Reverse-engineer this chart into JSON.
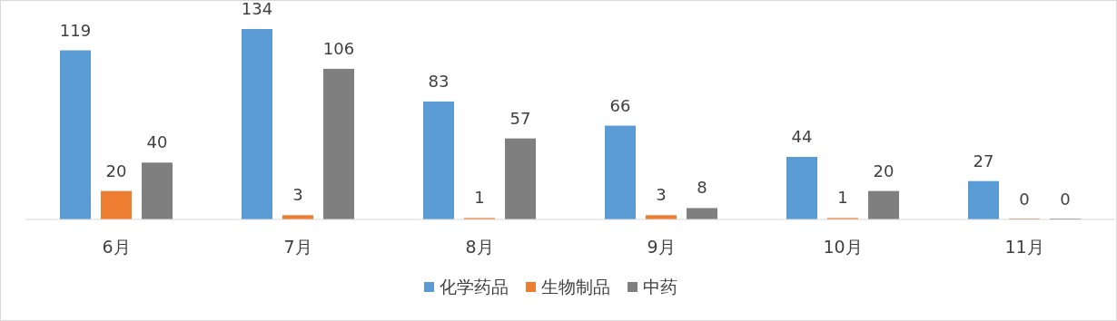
{
  "chart_data": {
    "type": "bar",
    "categories": [
      "6月",
      "7月",
      "8月",
      "9月",
      "10月",
      "11月"
    ],
    "series": [
      {
        "name": "化学药品",
        "color": "#5b9bd5",
        "values": [
          119,
          134,
          83,
          66,
          44,
          27
        ]
      },
      {
        "name": "生物制品",
        "color": "#ed7d31",
        "values": [
          20,
          3,
          1,
          3,
          1,
          0
        ]
      },
      {
        "name": "中药",
        "color": "#7f7f7f",
        "values": [
          40,
          106,
          57,
          8,
          20,
          0
        ]
      }
    ],
    "data_labels": true,
    "legend": "bottom"
  }
}
